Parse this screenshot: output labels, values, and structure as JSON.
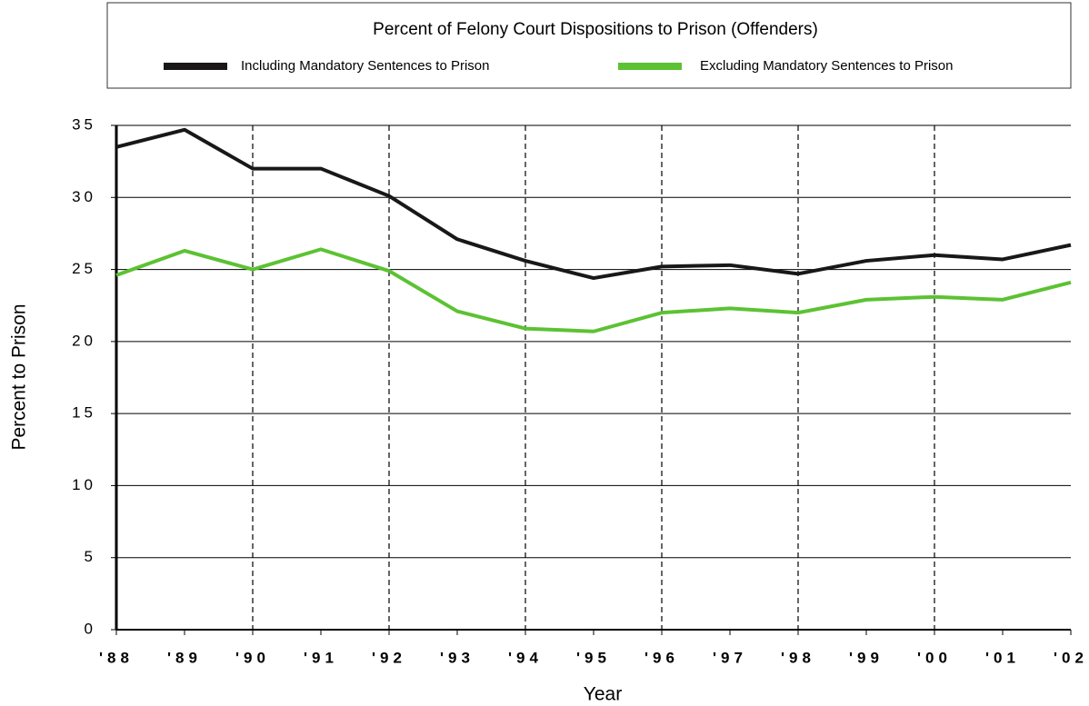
{
  "chart_data": {
    "type": "line",
    "title": "Percent of Felony Court Dispositions to Prison (Offenders)",
    "x_label": "Year",
    "y_label": "Percent to Prison",
    "categories": [
      "'88",
      "'89",
      "'90",
      "'91",
      "'92",
      "'93",
      "'94",
      "'95",
      "'96",
      "'97",
      "'98",
      "'99",
      "'00",
      "'01",
      "'02"
    ],
    "series": [
      {
        "name": "Including Mandatory Sentences to Prison",
        "color": "#1a1718",
        "values": [
          33.5,
          34.7,
          32.0,
          32.0,
          30.1,
          27.1,
          25.6,
          24.4,
          25.2,
          25.3,
          24.7,
          25.6,
          26.0,
          25.7,
          26.7
        ]
      },
      {
        "name": "Excluding Mandatory Sentences to Prison",
        "color": "#5cc233",
        "values": [
          24.6,
          26.3,
          25.0,
          26.4,
          24.9,
          22.1,
          20.9,
          20.7,
          22.0,
          22.3,
          22.0,
          22.9,
          23.1,
          22.9,
          24.1
        ]
      }
    ],
    "ylim": [
      0,
      35
    ],
    "yticks": [
      0,
      5,
      10,
      15,
      20,
      25,
      30,
      35
    ],
    "grid": true
  }
}
